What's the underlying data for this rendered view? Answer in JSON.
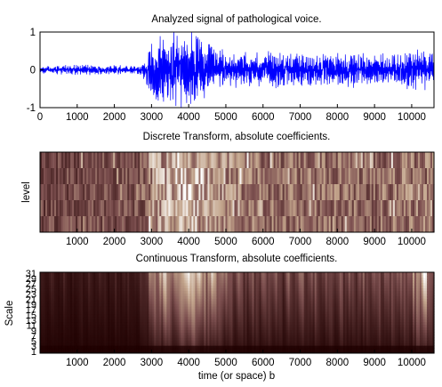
{
  "chart_data": [
    {
      "type": "line",
      "title": "Analyzed signal of pathological voice.",
      "xlabel": "",
      "ylabel": "",
      "xlim": [
        0,
        10600
      ],
      "ylim": [
        -1,
        1
      ],
      "x_ticks": [
        0,
        1000,
        2000,
        3000,
        4000,
        5000,
        6000,
        7000,
        8000,
        9000,
        10000
      ],
      "y_ticks": [
        -1,
        0,
        1
      ],
      "x_tick_labels": [
        "0",
        "1000",
        "2000",
        "3000",
        "4000",
        "5000",
        "6000",
        "7000",
        "8000",
        "9000",
        "10000"
      ],
      "y_tick_labels": [
        "-1",
        "0",
        "1"
      ],
      "series": [
        {
          "color": "#0000ff",
          "amplitude_envelope": {
            "x": [
              0,
              500,
              1000,
              1500,
              2000,
              2500,
              2700,
              2850,
              3000,
              3200,
              3400,
              3600,
              3800,
              4000,
              4200,
              4400,
              4600,
              4800,
              5000,
              5500,
              6000,
              6500,
              7000,
              7500,
              8000,
              8500,
              9000,
              9300,
              9600,
              10000,
              10300,
              10600
            ],
            "y": [
              0.1,
              0.12,
              0.14,
              0.12,
              0.12,
              0.12,
              0.12,
              0.3,
              0.7,
              0.9,
              0.95,
              1.0,
              1.0,
              1.0,
              0.95,
              0.85,
              0.7,
              0.6,
              0.5,
              0.45,
              0.45,
              0.45,
              0.4,
              0.4,
              0.45,
              0.45,
              0.4,
              0.4,
              0.45,
              0.55,
              0.5,
              0.45
            ]
          }
        }
      ],
      "grid": false
    },
    {
      "type": "heatmap",
      "title": "Discrete Transform, absolute coefficients.",
      "xlabel": "",
      "ylabel": "level",
      "xlim": [
        0,
        10600
      ],
      "x_ticks": [
        1000,
        2000,
        3000,
        4000,
        5000,
        6000,
        7000,
        8000,
        9000,
        10000
      ],
      "x_tick_labels": [
        "1000",
        "2000",
        "3000",
        "4000",
        "5000",
        "6000",
        "7000",
        "8000",
        "9000",
        "10000"
      ],
      "colormap": "pink",
      "rows": 5,
      "activity_profile": {
        "x": [
          0,
          1000,
          2000,
          2800,
          3000,
          3500,
          4000,
          4500,
          5000,
          6000,
          7000,
          8000,
          9000,
          10000,
          10600
        ],
        "y": [
          0.35,
          0.4,
          0.4,
          0.45,
          0.65,
          0.8,
          0.85,
          0.75,
          0.65,
          0.55,
          0.55,
          0.55,
          0.5,
          0.6,
          0.55
        ]
      }
    },
    {
      "type": "heatmap",
      "title": "Continuous Transform, absolute coefficients.",
      "xlabel": "time (or space) b",
      "ylabel": "Scale",
      "xlim": [
        0,
        10600
      ],
      "ylim": [
        1,
        31
      ],
      "x_ticks": [
        1000,
        2000,
        3000,
        4000,
        5000,
        6000,
        7000,
        8000,
        9000,
        10000
      ],
      "x_tick_labels": [
        "1000",
        "2000",
        "3000",
        "4000",
        "5000",
        "6000",
        "7000",
        "8000",
        "9000",
        "10000"
      ],
      "y_ticks": [
        1,
        3,
        5,
        7,
        9,
        11,
        13,
        15,
        17,
        19,
        21,
        23,
        25,
        27,
        29,
        31
      ],
      "y_tick_labels": [
        "1",
        "3",
        "5",
        "7",
        "9",
        "11",
        "13",
        "15",
        "17",
        "19",
        "21",
        "23",
        "25",
        "27",
        "29",
        "31"
      ],
      "colormap": "pink",
      "activity_profile": {
        "x": [
          0,
          1000,
          2000,
          2800,
          3000,
          3500,
          4000,
          4500,
          5000,
          5500,
          6000,
          7000,
          8000,
          9000,
          10000,
          10300,
          10600
        ],
        "y": [
          0.15,
          0.15,
          0.15,
          0.2,
          0.75,
          0.95,
          1.0,
          0.9,
          0.55,
          0.45,
          0.4,
          0.4,
          0.4,
          0.4,
          0.55,
          0.95,
          0.6
        ]
      }
    }
  ]
}
